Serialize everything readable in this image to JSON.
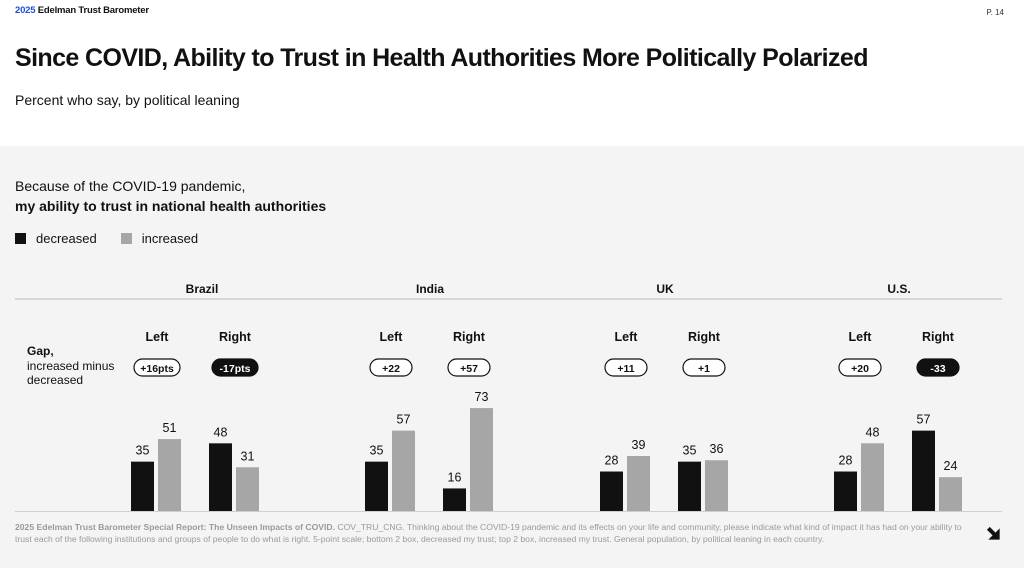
{
  "header": {
    "brand_year": "2025",
    "brand_name": "Edelman Trust Barometer",
    "page_number": "P. 14"
  },
  "title": "Since COVID, Ability to Trust in Health Authorities More Politically Polarized",
  "subtitle": "Percent who say, by political leaning",
  "question": {
    "line1": "Because of the COVID-19 pandemic,",
    "line2": "my ability to trust in national health authorities"
  },
  "legend": {
    "decreased": "decreased",
    "increased": "increased"
  },
  "gap_label": {
    "bold": "Gap,",
    "line2": "increased minus",
    "line3": "decreased"
  },
  "colors": {
    "decreased": "#111111",
    "increased": "#a6a6a6",
    "pill_dark": "#111111"
  },
  "chart_data": {
    "type": "bar",
    "series": [
      {
        "name": "decreased"
      },
      {
        "name": "increased"
      }
    ],
    "countries": [
      {
        "name": "Brazil",
        "groups": [
          {
            "label": "Left",
            "decreased": 35,
            "increased": 51,
            "gap": "+16pts",
            "gap_dark": false
          },
          {
            "label": "Right",
            "decreased": 48,
            "increased": 31,
            "gap": "-17pts",
            "gap_dark": true
          }
        ]
      },
      {
        "name": "India",
        "groups": [
          {
            "label": "Left",
            "decreased": 35,
            "increased": 57,
            "gap": "+22",
            "gap_dark": false
          },
          {
            "label": "Right",
            "decreased": 16,
            "increased": 73,
            "gap": "+57",
            "gap_dark": false
          }
        ]
      },
      {
        "name": "UK",
        "groups": [
          {
            "label": "Left",
            "decreased": 28,
            "increased": 39,
            "gap": "+11",
            "gap_dark": false
          },
          {
            "label": "Right",
            "decreased": 35,
            "increased": 36,
            "gap": "+1",
            "gap_dark": false
          }
        ]
      },
      {
        "name": "U.S.",
        "groups": [
          {
            "label": "Left",
            "decreased": 28,
            "increased": 48,
            "gap": "+20",
            "gap_dark": false
          },
          {
            "label": "Right",
            "decreased": 57,
            "increased": 24,
            "gap": "-33",
            "gap_dark": true
          }
        ]
      }
    ],
    "ylim": [
      0,
      73
    ]
  },
  "footnote": {
    "source_bold": "2025 Edelman Trust Barometer Special Report: The Unseen Impacts of COVID.",
    "text": "COV_TRU_CNG. Thinking about the COVID-19 pandemic and its effects on your life and community, please indicate what kind of impact it has had on your ability to trust each of the following institutions and groups of people to do what is right. 5-point scale; bottom 2 box, decreased my trust; top 2 box, increased my trust. General population, by political leaning in each country."
  },
  "nav": {
    "next_icon": "arrow-down-right-icon"
  }
}
